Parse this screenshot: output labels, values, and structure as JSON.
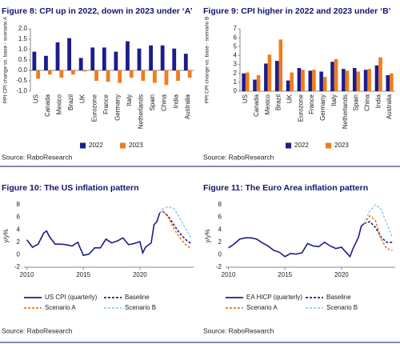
{
  "chart_data": [
    {
      "type": "bar",
      "title": "Figure 8: CPI up in 2022, down in 2023 under ‘A’",
      "ylabel": "PPt CPI change vs. base - scenario A",
      "source": "Source: RaboResearch",
      "categories": [
        "US",
        "Canada",
        "Mexico",
        "Brazil",
        "UK",
        "Eurozone",
        "France",
        "Germany",
        "Italy",
        "Netherlands",
        "Spain",
        "China",
        "India",
        "Australia"
      ],
      "series": [
        {
          "name": "2022",
          "color": "#1c1c8c",
          "values": [
            0.9,
            0.7,
            1.35,
            1.55,
            0.6,
            1.1,
            1.1,
            0.9,
            1.4,
            1.05,
            1.2,
            1.2,
            1.05,
            0.8
          ]
        },
        {
          "name": "2023",
          "color": "#f07d1a",
          "values": [
            -0.4,
            -0.2,
            -0.35,
            -0.2,
            -0.05,
            -0.5,
            -0.55,
            -0.6,
            -0.35,
            -0.5,
            -0.6,
            -0.7,
            -0.5,
            -0.35
          ]
        }
      ],
      "ylim": [
        -1,
        2
      ],
      "yticks": [
        {
          "value": -1,
          "label": "-1.0"
        },
        {
          "value": -0.5,
          "label": "-0.5"
        },
        {
          "value": 0,
          "label": "0.0"
        },
        {
          "value": 0.5,
          "label": "0.5"
        },
        {
          "value": 1,
          "label": "1.0"
        },
        {
          "value": 1.5,
          "label": "1.5"
        },
        {
          "value": 2,
          "label": "2.0"
        }
      ]
    },
    {
      "type": "bar",
      "title": "Figure 9: CPI higher in 2022 and 2023 under ‘B’",
      "ylabel": "PPt CPI change vs. base - scenario B",
      "source": "Source: RaboResearch",
      "categories": [
        "US",
        "Canada",
        "Mexico",
        "Brazil",
        "UK",
        "Eurozone",
        "France",
        "Germany",
        "Italy",
        "Netherlands",
        "Spain",
        "China",
        "India",
        "Australia"
      ],
      "series": [
        {
          "name": "2022",
          "color": "#1c1c8c",
          "values": [
            2.0,
            1.3,
            3.1,
            3.4,
            1.2,
            2.6,
            2.3,
            2.2,
            3.3,
            2.5,
            2.6,
            2.4,
            2.9,
            1.8
          ]
        },
        {
          "name": "2023",
          "color": "#f07d1a",
          "values": [
            2.1,
            1.8,
            4.1,
            5.8,
            2.1,
            2.4,
            2.4,
            1.6,
            3.6,
            2.3,
            2.2,
            2.5,
            3.8,
            2.0
          ]
        }
      ],
      "ylim": [
        0,
        7
      ],
      "yticks": [
        0,
        1,
        2,
        3,
        4,
        5,
        6,
        7
      ]
    },
    {
      "type": "line",
      "title": "Figure 10: The US inflation pattern",
      "ylabel": "y/y%",
      "source": "Source: RaboResearch",
      "xlim": [
        2009.75,
        2024.75
      ],
      "xticks": [
        2010,
        2015,
        2020
      ],
      "ylim": [
        -2,
        8
      ],
      "yticks": [
        -2,
        0,
        2,
        4,
        6,
        8
      ],
      "series": [
        {
          "name": "US CPI (quarterly)",
          "color": "#1c1c8c",
          "style": "solid",
          "x": [
            2010,
            2010.5,
            2011,
            2011.5,
            2011.75,
            2012,
            2012.5,
            2013,
            2013.5,
            2014,
            2014.5,
            2015,
            2015.5,
            2016,
            2016.5,
            2017,
            2017.5,
            2018,
            2018.5,
            2019,
            2019.5,
            2020,
            2020.25,
            2020.5,
            2021,
            2021.25,
            2021.5,
            2021.75
          ],
          "values": [
            2.4,
            1.2,
            1.7,
            3.5,
            3.8,
            2.9,
            1.7,
            1.7,
            1.6,
            1.4,
            2.0,
            -0.1,
            0.1,
            1.1,
            1.1,
            2.5,
            1.9,
            2.2,
            2.7,
            1.6,
            1.8,
            2.1,
            0.3,
            1.2,
            1.9,
            4.8,
            5.3,
            6.7
          ]
        },
        {
          "name": "Baseline",
          "color": "#1c1c8c",
          "style": "dashed",
          "x": [
            2021.75,
            2022,
            2022.5,
            2023,
            2023.5,
            2024,
            2024.5
          ],
          "values": [
            6.7,
            7.0,
            6.2,
            4.8,
            3.5,
            2.5,
            1.8
          ]
        },
        {
          "name": "Scenario A",
          "color": "#f07d1a",
          "style": "dashed",
          "x": [
            2021.75,
            2022,
            2022.5,
            2023,
            2023.5,
            2024,
            2024.5
          ],
          "values": [
            6.7,
            7.1,
            6.0,
            4.2,
            2.8,
            1.7,
            1.0
          ]
        },
        {
          "name": "Scenario B",
          "color": "#8fd3ea",
          "style": "dashed",
          "x": [
            2021.75,
            2022,
            2022.5,
            2023,
            2023.5,
            2024,
            2024.5
          ],
          "values": [
            6.7,
            7.3,
            7.7,
            7.4,
            6.0,
            4.3,
            2.8
          ]
        }
      ]
    },
    {
      "type": "line",
      "title": "Figure 11: The Euro Area inflation pattern",
      "ylabel": "y/y%",
      "source": "Source: RaboResearch",
      "xlim": [
        2009.75,
        2024.75
      ],
      "xticks": [
        2010,
        2015,
        2020
      ],
      "ylim": [
        -2,
        8
      ],
      "yticks": [
        -2,
        0,
        2,
        4,
        6,
        8
      ],
      "series": [
        {
          "name": "EA HICP (quarterly)",
          "color": "#1c1c8c",
          "style": "solid",
          "x": [
            2010,
            2010.5,
            2011,
            2011.5,
            2012,
            2012.5,
            2013,
            2013.5,
            2014,
            2014.5,
            2015,
            2015.5,
            2016,
            2016.5,
            2017,
            2017.5,
            2018,
            2018.5,
            2019,
            2019.5,
            2020,
            2020.5,
            2020.75,
            2021,
            2021.5,
            2021.75,
            2022
          ],
          "values": [
            1.1,
            1.7,
            2.5,
            2.7,
            2.7,
            2.5,
            1.9,
            1.4,
            0.7,
            0.4,
            -0.3,
            0.2,
            0.1,
            0.3,
            1.8,
            1.4,
            1.3,
            2.0,
            1.4,
            1.0,
            1.2,
            0.2,
            -0.3,
            0.9,
            2.8,
            4.6,
            5.0
          ]
        },
        {
          "name": "Baseline",
          "color": "#1c1c8c",
          "style": "dashed",
          "x": [
            2022,
            2022.5,
            2023,
            2023.5,
            2024,
            2024.5
          ],
          "values": [
            5.0,
            5.3,
            4.4,
            2.8,
            2.0,
            2.0
          ]
        },
        {
          "name": "Scenario A",
          "color": "#f07d1a",
          "style": "dashed",
          "x": [
            2022,
            2022.5,
            2023,
            2023.5,
            2024,
            2024.5
          ],
          "values": [
            5.0,
            6.2,
            5.5,
            2.5,
            1.0,
            0.7
          ]
        },
        {
          "name": "Scenario B",
          "color": "#8fd3ea",
          "style": "dashed",
          "x": [
            2022,
            2022.5,
            2023,
            2023.5,
            2024,
            2024.5
          ],
          "values": [
            5.0,
            7.0,
            8.0,
            7.3,
            5.0,
            2.7
          ]
        }
      ]
    }
  ]
}
